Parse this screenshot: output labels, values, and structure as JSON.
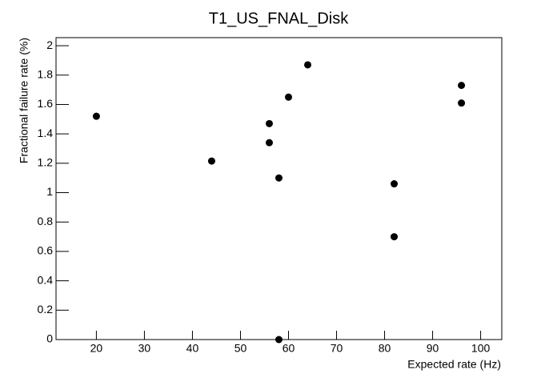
{
  "chart_data": {
    "type": "scatter",
    "title": "T1_US_FNAL_Disk",
    "x_label": "Expected rate (Hz)",
    "y_label": "Fractional failure rate (%)",
    "x": [
      20,
      44,
      56,
      56,
      58,
      58,
      60,
      64,
      82,
      82,
      96,
      96
    ],
    "values": [
      1.52,
      1.215,
      1.47,
      1.34,
      1.1,
      0,
      1.65,
      1.87,
      1.06,
      0.7,
      1.73,
      1.61
    ],
    "color": "#000000",
    "xlim": [
      11.6,
      104.4
    ],
    "xticks": [
      20,
      30,
      40,
      50,
      60,
      70,
      80,
      90,
      100
    ],
    "ylim": [
      0,
      2.055
    ],
    "yticks": [
      0,
      0.2,
      0.4,
      0.6,
      0.8,
      1,
      1.2,
      1.4,
      1.6,
      1.8,
      2
    ]
  }
}
